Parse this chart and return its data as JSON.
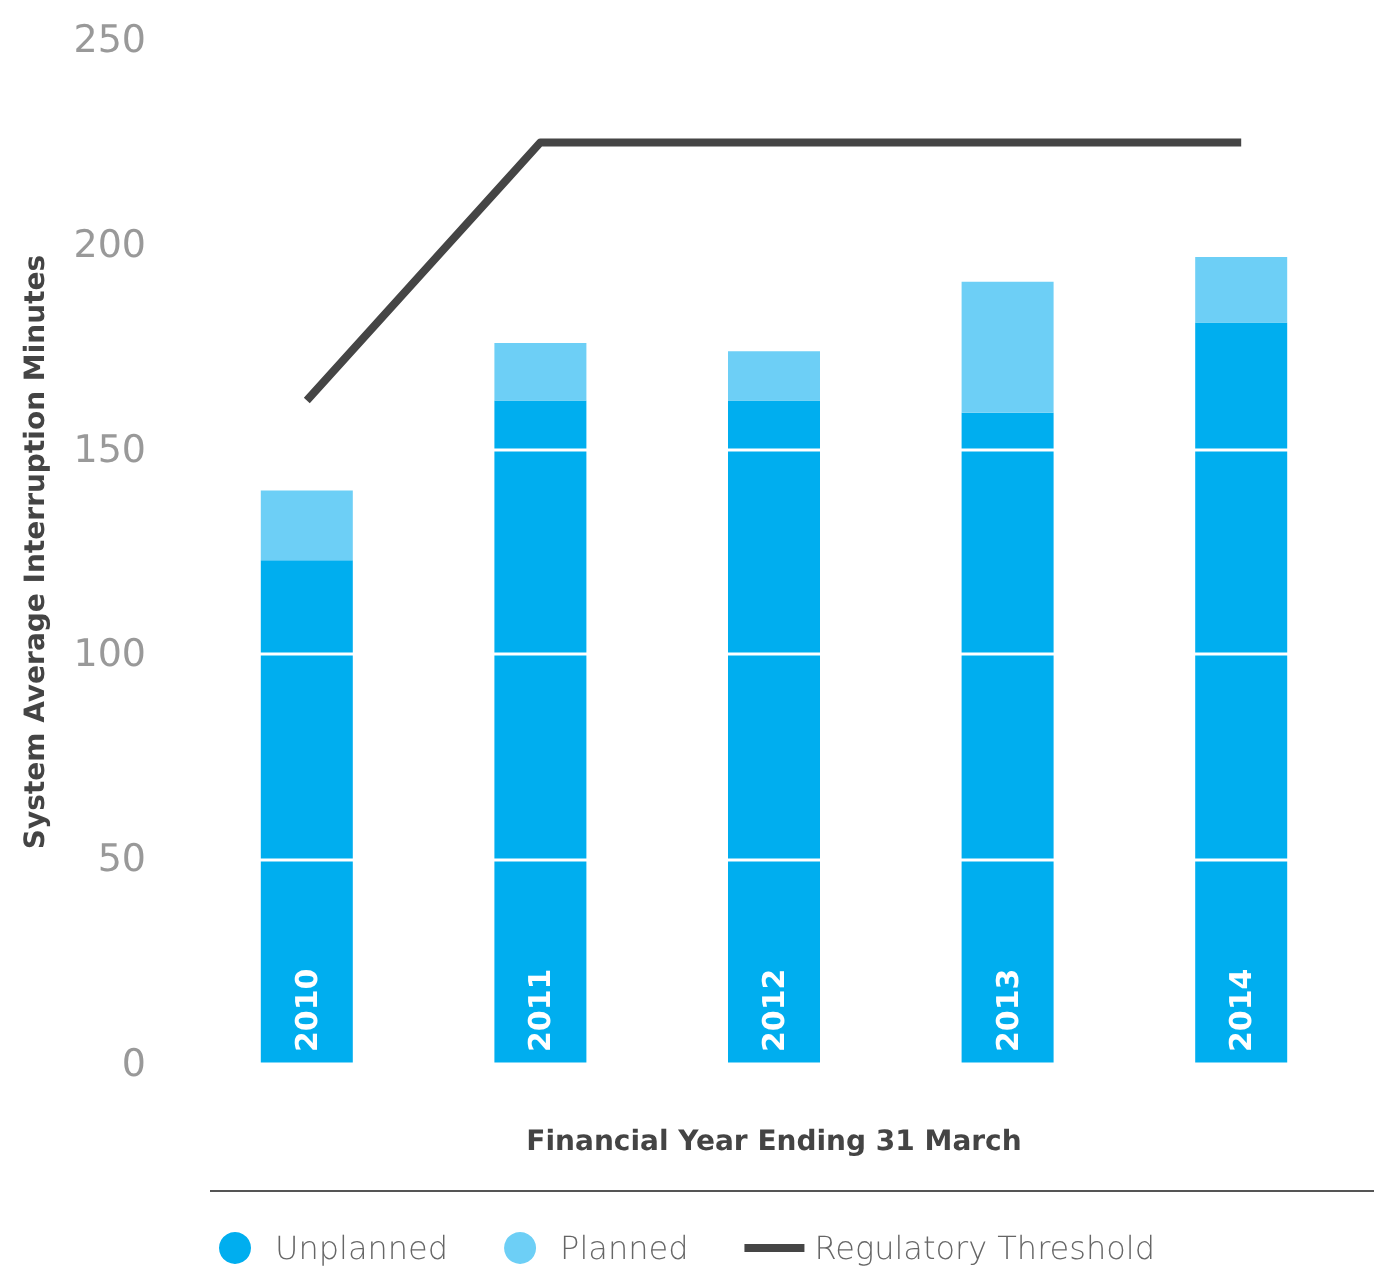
{
  "chart_data": {
    "type": "bar",
    "stacked": true,
    "xlabel": "Financial Year Ending 31 March",
    "ylabel": "System Average Interruption Minutes",
    "categories": [
      "2010",
      "2011",
      "2012",
      "2013",
      "2014"
    ],
    "series": [
      {
        "name": "Unplanned",
        "color": "#00aeef",
        "values": [
          123,
          162,
          162,
          159,
          181
        ]
      },
      {
        "name": "Planned",
        "color": "#6dcff6",
        "values": [
          17,
          14,
          12,
          32,
          16
        ]
      },
      {
        "name": "Regulatory Threshold",
        "type": "line",
        "color": "#454545",
        "values": [
          162,
          225,
          225,
          225,
          225
        ]
      }
    ],
    "ylim": [
      0,
      250
    ],
    "yticks": [
      0,
      50,
      100,
      150,
      200,
      250
    ],
    "grid": "y",
    "legend": "bottom"
  }
}
